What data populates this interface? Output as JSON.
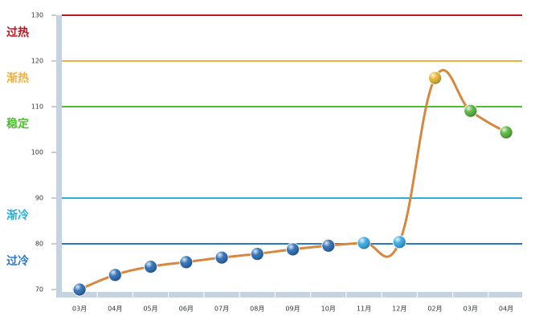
{
  "chart_data": {
    "type": "line",
    "categories": [
      "03月",
      "04月",
      "05月",
      "06月",
      "07月",
      "08月",
      "09月",
      "10月",
      "11月",
      "12月",
      "02月",
      "03月",
      "04月"
    ],
    "values": [
      70,
      73.2,
      75,
      76,
      77,
      77.8,
      78.8,
      79.6,
      80.2,
      80.4,
      116.3,
      109.1,
      104.4
    ],
    "point_colors": [
      "#1f64b0",
      "#1f64b0",
      "#1f64b0",
      "#1f64b0",
      "#1f64b0",
      "#1f64b0",
      "#1f64b0",
      "#1f64b0",
      "#29a3e0",
      "#29a3e0",
      "#e0b020",
      "#4cb030",
      "#4cb030"
    ],
    "color": "#d8873f",
    "ylim": [
      70,
      130
    ],
    "yticks": [
      70,
      80,
      90,
      100,
      110,
      120,
      130
    ],
    "reference_lines": [
      {
        "value": 130,
        "label": "过热",
        "color": "#c0141e"
      },
      {
        "value": 120,
        "label": "渐热",
        "color": "#f0b040"
      },
      {
        "value": 110,
        "label": "稳定",
        "color": "#4cc02c"
      },
      {
        "value": 90,
        "label": "渐冷",
        "color": "#29b0d8"
      },
      {
        "value": 80,
        "label": "过冷",
        "color": "#2878c8"
      }
    ]
  }
}
